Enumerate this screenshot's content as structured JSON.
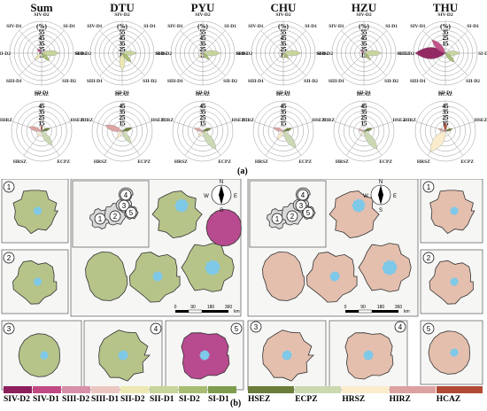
{
  "panel_a_label": "(a)",
  "panel_b_label": "(b)",
  "radar_titles": [
    "Sum",
    "DTU",
    "PYU",
    "CHU",
    "HZU",
    "THU"
  ],
  "radar_axis_labels_top": [
    "SIV-D2",
    "SI-D1",
    "SI-D2",
    "SII-D2",
    "SII-D1",
    "SIII-D1",
    "SIII-D2",
    "SIV-D1"
  ],
  "radar_axis_labels_bottom": [
    "HCAZ",
    "HSEZ",
    "ECPZ",
    "HRSZ",
    "HIRZ"
  ],
  "radar_ticks_top": [
    "(%)",
    "55",
    "45",
    "35",
    "25",
    "15"
  ],
  "radar_ticks_bottom": [
    "45",
    "35",
    "25",
    "15"
  ],
  "thu_ticks_top": [
    "(%)",
    "35",
    "25",
    "15"
  ],
  "map_numbers": [
    "1",
    "2",
    "3",
    "4",
    "5"
  ],
  "compass": {
    "n": "N",
    "s": "S",
    "e": "E",
    "w": "W"
  },
  "scale": {
    "ticks": [
      "0",
      "90",
      "180",
      "360"
    ],
    "unit": "km"
  },
  "legend_left": {
    "items": [
      "SIV-D2",
      "SIV-D1",
      "SIII-D2",
      "SIII-D1",
      "SII-D2",
      "SII-D1",
      "SI-D2",
      "SI-D1"
    ],
    "colors": [
      "#8e1f5d",
      "#c24a84",
      "#d88faa",
      "#ecc7c2",
      "#ece8b2",
      "#c7d59a",
      "#a8bd72",
      "#7d9d4d"
    ]
  },
  "legend_right": {
    "items": [
      "HSEZ",
      "ECPZ",
      "HRSZ",
      "HIRZ",
      "HCAZ"
    ],
    "colors": [
      "#6b7d3a",
      "#cbd8b0",
      "#fbeccb",
      "#dda2a0",
      "#b04a34"
    ]
  }
}
